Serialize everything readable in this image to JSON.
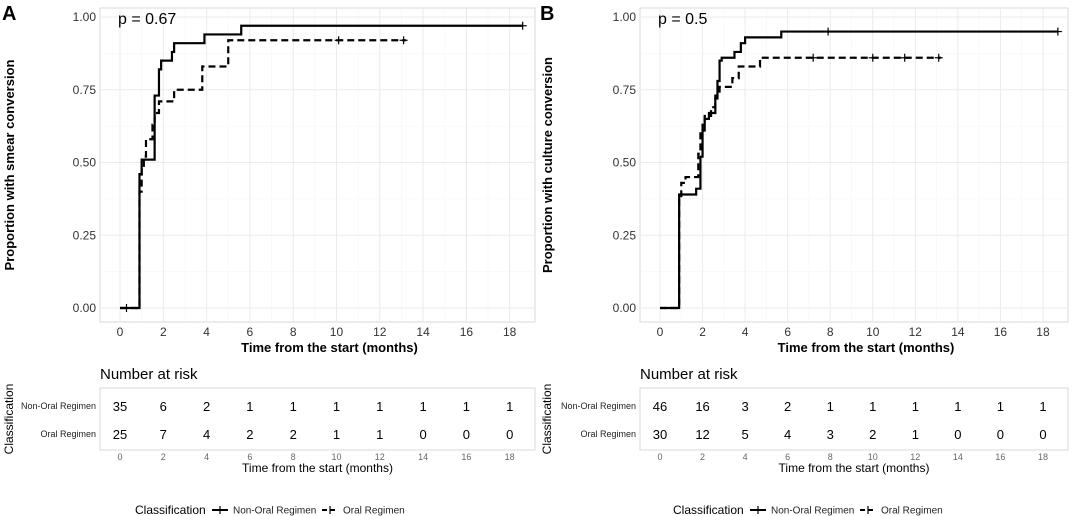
{
  "chart_data": [
    {
      "type": "kaplan-meier",
      "panel_label": "A",
      "p_value_text": "p = 0.67",
      "xlabel": "Time from the start (months)",
      "ylabel": "Proportion with smear conversion",
      "xlim": [
        0,
        18.8
      ],
      "ylim": [
        0,
        1
      ],
      "x_ticks": [
        "0",
        "2",
        "4",
        "6",
        "8",
        "10",
        "12",
        "14",
        "16",
        "18"
      ],
      "y_ticks": [
        "0.00",
        "0.25",
        "0.50",
        "0.75",
        "1.00"
      ],
      "series": [
        {
          "name": "Non-Oral Regimen",
          "style": "solid",
          "steps": [
            [
              0,
              0
            ],
            [
              0.9,
              0
            ],
            [
              0.9,
              0.46
            ],
            [
              1.0,
              0.51
            ],
            [
              1.5,
              0.51
            ],
            [
              1.6,
              0.73
            ],
            [
              1.8,
              0.82
            ],
            [
              1.9,
              0.85
            ],
            [
              2.3,
              0.85
            ],
            [
              2.4,
              0.88
            ],
            [
              2.5,
              0.91
            ],
            [
              3.0,
              0.91
            ],
            [
              3.9,
              0.94
            ],
            [
              5.4,
              0.94
            ],
            [
              5.6,
              0.97
            ],
            [
              18.6,
              0.97
            ]
          ],
          "censors": [
            [
              18.6,
              0.97
            ]
          ]
        },
        {
          "name": "Oral Regimen",
          "style": "dashed",
          "steps": [
            [
              0,
              0
            ],
            [
              0.9,
              0
            ],
            [
              0.9,
              0.4
            ],
            [
              1.0,
              0.48
            ],
            [
              1.1,
              0.52
            ],
            [
              1.2,
              0.58
            ],
            [
              1.5,
              0.63
            ],
            [
              1.6,
              0.67
            ],
            [
              1.8,
              0.71
            ],
            [
              2.4,
              0.71
            ],
            [
              2.5,
              0.75
            ],
            [
              3.6,
              0.75
            ],
            [
              3.8,
              0.83
            ],
            [
              4.8,
              0.83
            ],
            [
              5.0,
              0.92
            ],
            [
              13.2,
              0.92
            ]
          ],
          "censors": [
            [
              0.3,
              0
            ],
            [
              10.1,
              0.92
            ],
            [
              13.1,
              0.92
            ]
          ]
        }
      ],
      "risk_table": {
        "title": "Number at risk",
        "ylabel": "Classification",
        "xlabel": "Time from the start (months)",
        "time_labels": [
          "0",
          "2",
          "4",
          "6",
          "8",
          "10",
          "12",
          "14",
          "16",
          "18"
        ],
        "rows": [
          {
            "label": "Non-Oral Regimen",
            "values": [
              "35",
              "6",
              "2",
              "1",
              "1",
              "1",
              "1",
              "1",
              "1",
              "1"
            ]
          },
          {
            "label": "Oral Regimen",
            "values": [
              "25",
              "7",
              "4",
              "2",
              "2",
              "1",
              "1",
              "0",
              "0",
              "0"
            ]
          }
        ]
      },
      "legend": {
        "title": "Classification",
        "items": [
          "Non-Oral Regimen",
          "Oral Regimen"
        ]
      }
    },
    {
      "type": "kaplan-meier",
      "panel_label": "B",
      "p_value_text": "p = 0.5",
      "xlabel": "Time from the start (months)",
      "ylabel": "Proportion with culture conversion",
      "xlim": [
        0,
        18.8
      ],
      "ylim": [
        0,
        1
      ],
      "x_ticks": [
        "0",
        "2",
        "4",
        "6",
        "8",
        "10",
        "12",
        "14",
        "16",
        "18"
      ],
      "y_ticks": [
        "0.00",
        "0.25",
        "0.50",
        "0.75",
        "1.00"
      ],
      "series": [
        {
          "name": "Non-Oral Regimen",
          "style": "solid",
          "steps": [
            [
              0,
              0
            ],
            [
              0.9,
              0
            ],
            [
              0.9,
              0.39
            ],
            [
              1.6,
              0.39
            ],
            [
              1.7,
              0.41
            ],
            [
              1.9,
              0.52
            ],
            [
              2.0,
              0.61
            ],
            [
              2.1,
              0.65
            ],
            [
              2.3,
              0.67
            ],
            [
              2.5,
              0.67
            ],
            [
              2.6,
              0.72
            ],
            [
              2.7,
              0.78
            ],
            [
              2.8,
              0.85
            ],
            [
              2.9,
              0.86
            ],
            [
              3.4,
              0.86
            ],
            [
              3.5,
              0.88
            ],
            [
              3.8,
              0.91
            ],
            [
              4.0,
              0.93
            ],
            [
              5.5,
              0.93
            ],
            [
              5.7,
              0.95
            ],
            [
              18.7,
              0.95
            ]
          ],
          "censors": [
            [
              7.9,
              0.95
            ],
            [
              18.7,
              0.95
            ]
          ]
        },
        {
          "name": "Oral Regimen",
          "style": "dashed",
          "steps": [
            [
              0,
              0
            ],
            [
              0.9,
              0
            ],
            [
              0.9,
              0.38
            ],
            [
              1.0,
              0.43
            ],
            [
              1.2,
              0.45
            ],
            [
              1.6,
              0.45
            ],
            [
              1.8,
              0.53
            ],
            [
              1.9,
              0.6
            ],
            [
              2.0,
              0.63
            ],
            [
              2.1,
              0.66
            ],
            [
              2.4,
              0.69
            ],
            [
              2.6,
              0.73
            ],
            [
              2.8,
              0.76
            ],
            [
              3.2,
              0.76
            ],
            [
              3.4,
              0.79
            ],
            [
              3.7,
              0.83
            ],
            [
              4.5,
              0.83
            ],
            [
              4.7,
              0.86
            ],
            [
              13.2,
              0.86
            ]
          ],
          "censors": [
            [
              7.2,
              0.86
            ],
            [
              10.0,
              0.86
            ],
            [
              11.5,
              0.86
            ],
            [
              13.1,
              0.86
            ]
          ]
        }
      ],
      "risk_table": {
        "title": "Number at risk",
        "ylabel": "Classification",
        "xlabel": "Time from the start (months)",
        "time_labels": [
          "0",
          "2",
          "4",
          "6",
          "8",
          "10",
          "12",
          "14",
          "16",
          "18"
        ],
        "rows": [
          {
            "label": "Non-Oral Regimen",
            "values": [
              "46",
              "16",
              "3",
              "2",
              "1",
              "1",
              "1",
              "1",
              "1",
              "1"
            ]
          },
          {
            "label": "Oral Regimen",
            "values": [
              "30",
              "12",
              "5",
              "4",
              "3",
              "2",
              "1",
              "0",
              "0",
              "0"
            ]
          }
        ]
      },
      "legend": {
        "title": "Classification",
        "items": [
          "Non-Oral Regimen",
          "Oral Regimen"
        ]
      }
    }
  ]
}
